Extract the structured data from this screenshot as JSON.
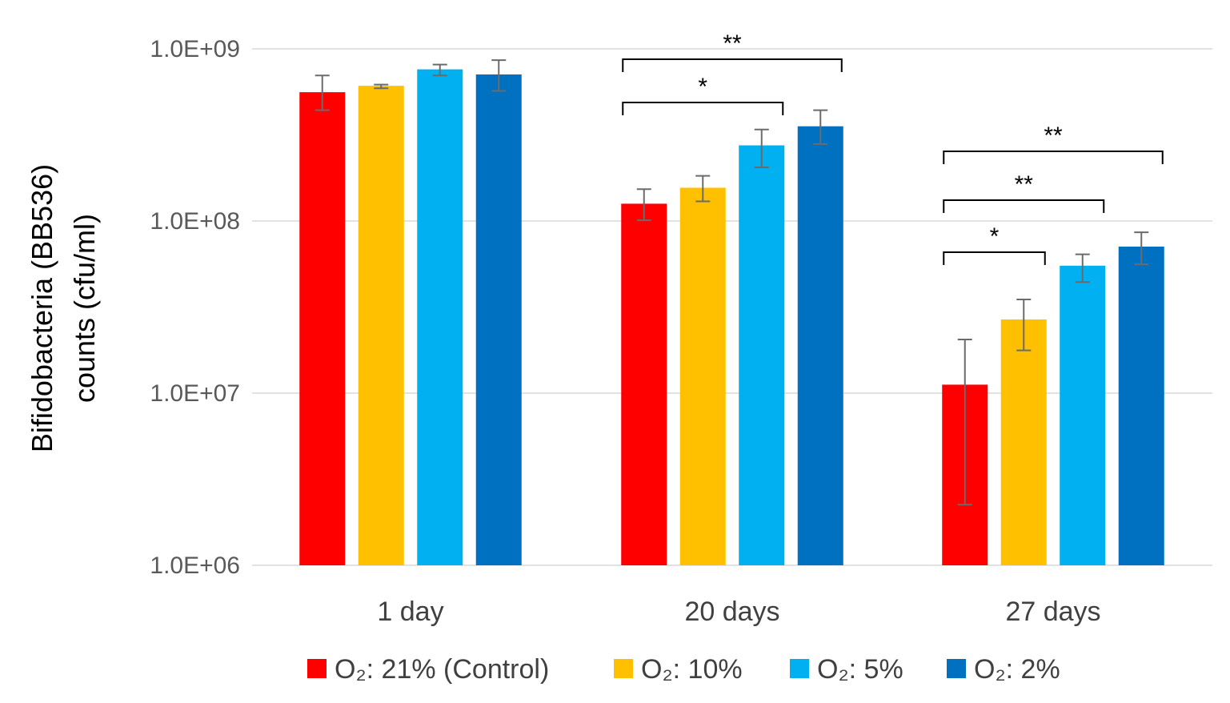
{
  "chart_data": {
    "type": "bar",
    "title": "",
    "ylabel_lines": [
      "Bifidobacteria (BB536)",
      "counts (cfu/ml)"
    ],
    "xlabel": "",
    "yscale": "log",
    "ylim": [
      1000000,
      1000000000
    ],
    "yticks": [
      {
        "value": 1000000,
        "label": "1.0E+06"
      },
      {
        "value": 10000000,
        "label": "1.0E+07"
      },
      {
        "value": 100000000,
        "label": "1.0E+08"
      },
      {
        "value": 1000000000,
        "label": "1.0E+09"
      }
    ],
    "grid": true,
    "legend_position": "bottom",
    "categories": [
      "1 day",
      "20 days",
      "27 days"
    ],
    "series": [
      {
        "name": "O₂: 21% (Control)",
        "color": "#ff0000",
        "values": [
          560000000,
          126000000,
          11200000
        ],
        "error_low": [
          440000000,
          101000000,
          2250000
        ],
        "error_high": [
          700000000,
          153000000,
          20500000
        ]
      },
      {
        "name": "O₂: 10%",
        "color": "#ffc000",
        "values": [
          610000000,
          156000000,
          26800000
        ],
        "error_low": [
          590000000,
          130000000,
          17700000
        ],
        "error_high": [
          620000000,
          183000000,
          35000000
        ]
      },
      {
        "name": "O₂: 5%",
        "color": "#00b0f0",
        "values": [
          760000000,
          275000000,
          55000000
        ],
        "error_low": [
          700000000,
          205000000,
          44200000
        ],
        "error_high": [
          810000000,
          340000000,
          64000000
        ]
      },
      {
        "name": "O₂: 2%",
        "color": "#0070c0",
        "values": [
          710000000,
          355000000,
          71000000
        ],
        "error_low": [
          570000000,
          280000000,
          56000000
        ],
        "error_high": [
          860000000,
          440000000,
          86000000
        ]
      }
    ],
    "significance": [
      {
        "category": 1,
        "from_series": 0,
        "to_series": 3,
        "label": "**",
        "level": 2
      },
      {
        "category": 1,
        "from_series": 0,
        "to_series": 2,
        "label": "*",
        "level": 1
      },
      {
        "category": 2,
        "from_series": 0,
        "to_series": 3,
        "label": "**",
        "level": 3
      },
      {
        "category": 2,
        "from_series": 0,
        "to_series": 2,
        "label": "**",
        "level": 2
      },
      {
        "category": 2,
        "from_series": 0,
        "to_series": 1,
        "label": "*",
        "level": 1
      }
    ]
  }
}
